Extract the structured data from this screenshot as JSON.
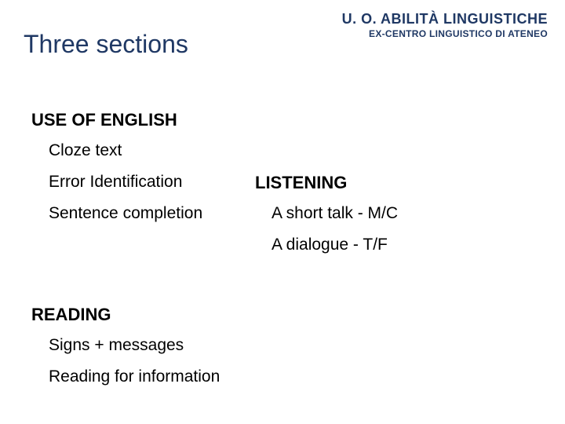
{
  "header": {
    "title": "Three sections",
    "org_line1": "U. O. ABILITÀ LINGUISTICHE",
    "org_line2": "EX-CENTRO LINGUISTICO DI ATENEO"
  },
  "colors": {
    "heading_color": "#1f3864",
    "body_color": "#000000",
    "background": "#ffffff"
  },
  "typography": {
    "title_fontsize": 32,
    "org1_fontsize": 18,
    "org2_fontsize": 12,
    "section_heading_fontsize": 22,
    "body_fontsize": 21,
    "font_family": "Arial"
  },
  "sections": {
    "use_of_english": {
      "heading": "USE OF ENGLISH",
      "items": {
        "cloze": "Cloze text",
        "error_id": "Error Identification",
        "sentence_completion": "Sentence completion"
      }
    },
    "listening": {
      "heading": "LISTENING",
      "items": {
        "short_talk": "A short talk  -  M/C",
        "dialogue": "A dialogue  -  T/F"
      }
    },
    "reading": {
      "heading": "READING",
      "items": {
        "signs": "Signs + messages",
        "reading_info": "Reading for information"
      }
    }
  }
}
